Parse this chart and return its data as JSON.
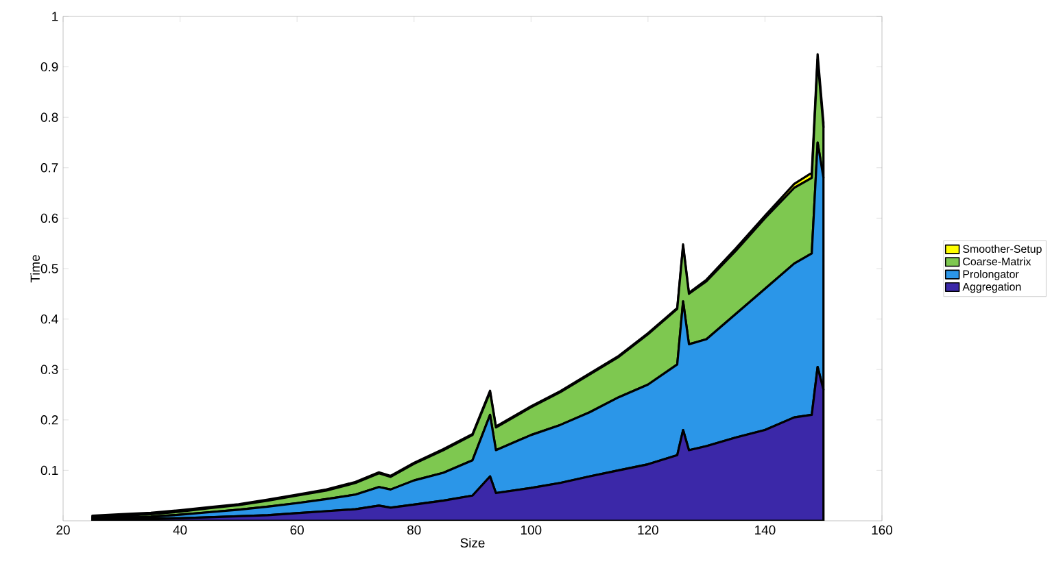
{
  "chart_data": {
    "type": "area",
    "stacked": true,
    "xlabel": "Size",
    "ylabel": "Time",
    "x": [
      25,
      30,
      35,
      40,
      45,
      50,
      55,
      60,
      65,
      70,
      74,
      76,
      80,
      85,
      90,
      93,
      94,
      100,
      105,
      110,
      115,
      120,
      125,
      126,
      127,
      130,
      135,
      140,
      145,
      148,
      149,
      150
    ],
    "series": [
      {
        "name": "Aggregation",
        "color": "#3b28a8",
        "values": [
          0.002,
          0.003,
          0.004,
          0.005,
          0.007,
          0.009,
          0.011,
          0.015,
          0.019,
          0.023,
          0.03,
          0.026,
          0.032,
          0.04,
          0.05,
          0.088,
          0.055,
          0.065,
          0.075,
          0.088,
          0.1,
          0.112,
          0.13,
          0.18,
          0.14,
          0.148,
          0.165,
          0.18,
          0.205,
          0.21,
          0.305,
          0.26
        ]
      },
      {
        "name": "Prolongator",
        "color": "#2b96e8",
        "values": [
          0.002,
          0.003,
          0.004,
          0.007,
          0.01,
          0.013,
          0.017,
          0.02,
          0.024,
          0.029,
          0.037,
          0.036,
          0.048,
          0.055,
          0.07,
          0.122,
          0.085,
          0.105,
          0.115,
          0.127,
          0.145,
          0.158,
          0.18,
          0.255,
          0.21,
          0.212,
          0.245,
          0.28,
          0.305,
          0.32,
          0.445,
          0.42
        ]
      },
      {
        "name": "Coarse-Matrix",
        "color": "#7ec850",
        "values": [
          0.002,
          0.004,
          0.005,
          0.006,
          0.008,
          0.009,
          0.012,
          0.015,
          0.017,
          0.023,
          0.027,
          0.025,
          0.033,
          0.045,
          0.05,
          0.045,
          0.045,
          0.055,
          0.065,
          0.075,
          0.08,
          0.1,
          0.11,
          0.11,
          0.1,
          0.115,
          0.125,
          0.14,
          0.15,
          0.15,
          0.165,
          0.1
        ]
      },
      {
        "name": "Smoother-Setup",
        "color": "#ffff00",
        "values": [
          0.004,
          0.003,
          0.003,
          0.003,
          0.002,
          0.002,
          0.002,
          0.002,
          0.002,
          0.002,
          0.002,
          0.002,
          0.002,
          0.002,
          0.002,
          0.003,
          0.002,
          0.002,
          0.002,
          0.002,
          0.002,
          0.002,
          0.002,
          0.003,
          0.002,
          0.003,
          0.005,
          0.005,
          0.008,
          0.01,
          0.01,
          0.01
        ]
      }
    ],
    "xlim": [
      20,
      160
    ],
    "xticks": [
      20,
      40,
      60,
      80,
      100,
      120,
      140,
      160
    ],
    "ylim": [
      0,
      1
    ],
    "yticks": [
      0.1,
      0.2,
      0.3,
      0.4,
      0.5,
      0.6,
      0.7,
      0.8,
      0.9,
      1
    ],
    "legend": "right",
    "grid": false
  }
}
